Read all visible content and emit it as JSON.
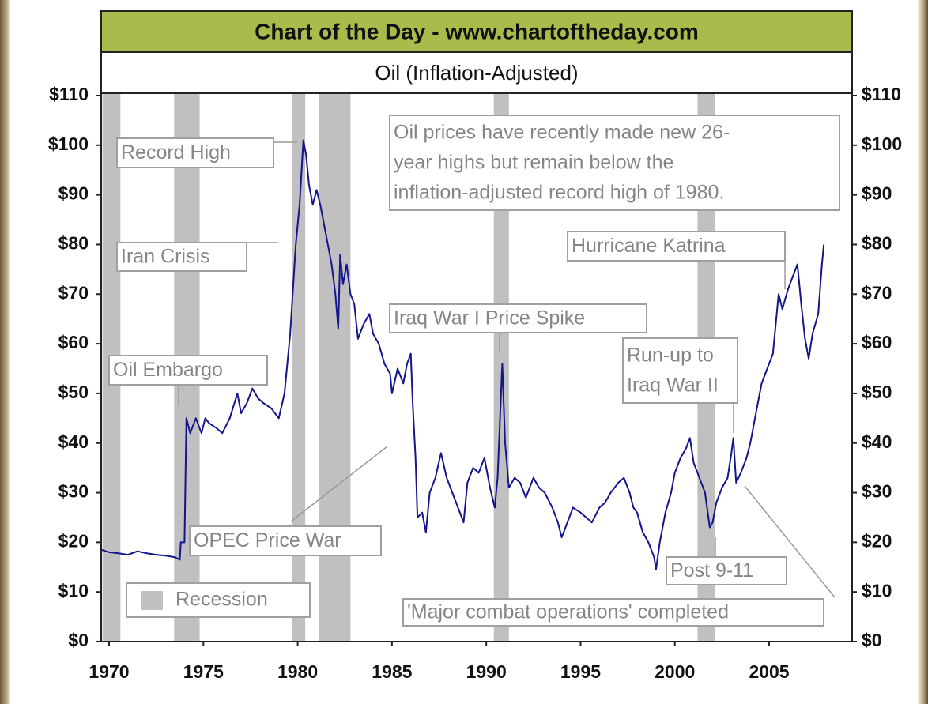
{
  "chart_data": {
    "type": "line",
    "title": "Chart of the Day - www.chartoftheday.com",
    "subtitle": "Oil (Inflation-Adjusted)",
    "color": "#14148c",
    "x": [
      1969.6,
      1970,
      1970.5,
      1971,
      1971.5,
      1972,
      1972.5,
      1973,
      1973.5,
      1973.75,
      1973.8,
      1974,
      1974.1,
      1974.3,
      1974.6,
      1974.9,
      1975.1,
      1975.3,
      1975.7,
      1976,
      1976.4,
      1976.8,
      1977,
      1977.3,
      1977.6,
      1977.9,
      1978.2,
      1978.6,
      1979,
      1979.3,
      1979.6,
      1979.9,
      1980.1,
      1980.3,
      1980.45,
      1980.6,
      1980.8,
      1981,
      1981.2,
      1981.4,
      1981.6,
      1981.8,
      1982,
      1982.15,
      1982.25,
      1982.4,
      1982.6,
      1982.8,
      1983,
      1983.2,
      1983.5,
      1983.8,
      1984,
      1984.3,
      1984.6,
      1984.9,
      1985,
      1985.3,
      1985.6,
      1985.8,
      1986,
      1986.1,
      1986.25,
      1986.35,
      1986.6,
      1986.8,
      1987,
      1987.3,
      1987.6,
      1987.9,
      1988.2,
      1988.5,
      1988.8,
      1989,
      1989.3,
      1989.6,
      1989.9,
      1990.2,
      1990.45,
      1990.6,
      1990.75,
      1990.85,
      1991,
      1991.2,
      1991.5,
      1991.8,
      1992.1,
      1992.5,
      1992.8,
      1993.1,
      1993.5,
      1993.8,
      1994,
      1994.3,
      1994.6,
      1995,
      1995.3,
      1995.6,
      1996,
      1996.3,
      1996.6,
      1997,
      1997.3,
      1997.6,
      1997.8,
      1998,
      1998.3,
      1998.6,
      1998.9,
      1999,
      1999.2,
      1999.5,
      1999.8,
      2000,
      2000.3,
      2000.6,
      2000.8,
      2001,
      2001.3,
      2001.6,
      2001.85,
      2002,
      2002.2,
      2002.5,
      2002.8,
      2003,
      2003.1,
      2003.25,
      2003.5,
      2003.8,
      2004,
      2004.3,
      2004.6,
      2004.9,
      2005.2,
      2005.5,
      2005.7,
      2006,
      2006.3,
      2006.5,
      2006.7,
      2006.9,
      2007.1,
      2007.3,
      2007.6,
      2007.8,
      2007.9
    ],
    "values": [
      18.5,
      18,
      17.8,
      17.5,
      18.2,
      17.8,
      17.5,
      17.3,
      17,
      16.5,
      20,
      20,
      45,
      42,
      45,
      42,
      45,
      44,
      43,
      42,
      45,
      50,
      46,
      48,
      51,
      49,
      48,
      47,
      45,
      50,
      62,
      80,
      88,
      101,
      98,
      92,
      88,
      91,
      88,
      84,
      80,
      76,
      70,
      63,
      78,
      72,
      76,
      70,
      68,
      61,
      64,
      66,
      62,
      60,
      56,
      54,
      50,
      55,
      52,
      56,
      58,
      48,
      37,
      25,
      26,
      22,
      30,
      33,
      38,
      33,
      30,
      27,
      24,
      32,
      35,
      34,
      37,
      31,
      27,
      33,
      47,
      56,
      40,
      31,
      33,
      32,
      29,
      33,
      31,
      30,
      27,
      24,
      21,
      24,
      27,
      26,
      25,
      24,
      27,
      28,
      30,
      32,
      33,
      30,
      27,
      26,
      22,
      20,
      17,
      14.5,
      20,
      26,
      30,
      34,
      37,
      39,
      41,
      36,
      33,
      30,
      23,
      24,
      28,
      31,
      33,
      38,
      41,
      32,
      34,
      37,
      40,
      46,
      52,
      55,
      58,
      70,
      67,
      71,
      74,
      76,
      68,
      61,
      57,
      62,
      66,
      76,
      80
    ],
    "xlim": [
      1969.58,
      2009.4
    ],
    "xticks": [
      1970,
      1975,
      1980,
      1985,
      1990,
      1995,
      2000,
      2005
    ],
    "ylim": [
      0,
      110
    ],
    "yticks": [
      {
        "value": 0,
        "label": "$0"
      },
      {
        "value": 10,
        "label": "$10"
      },
      {
        "value": 20,
        "label": "$20"
      },
      {
        "value": 30,
        "label": "$30"
      },
      {
        "value": 40,
        "label": "$40"
      },
      {
        "value": 50,
        "label": "$50"
      },
      {
        "value": 60,
        "label": "$60"
      },
      {
        "value": 70,
        "label": "$70"
      },
      {
        "value": 80,
        "label": "$80"
      },
      {
        "value": 90,
        "label": "$90"
      },
      {
        "value": 100,
        "label": "$100"
      },
      {
        "value": 110,
        "label": "$110"
      }
    ],
    "y2lim": [
      0,
      110
    ],
    "y2ticks": [
      {
        "value": 0,
        "label": "$0"
      },
      {
        "value": 10,
        "label": "$10"
      },
      {
        "value": 20,
        "label": "$20"
      },
      {
        "value": 30,
        "label": "$30"
      },
      {
        "value": 40,
        "label": "$40"
      },
      {
        "value": 50,
        "label": "$50"
      },
      {
        "value": 60,
        "label": "$60"
      },
      {
        "value": 70,
        "label": "$70"
      },
      {
        "value": 80,
        "label": "$80"
      },
      {
        "value": 90,
        "label": "$90"
      },
      {
        "value": 100,
        "label": "$100"
      },
      {
        "value": 110,
        "label": "$110"
      }
    ],
    "shaded": {
      "name": "Recession",
      "color": "#c0c0c0",
      "periods": [
        [
          1969.65,
          1970.6
        ],
        [
          1973.45,
          1974.8
        ],
        [
          1979.68,
          1980.4
        ],
        [
          1981.15,
          1982.8
        ],
        [
          1990.4,
          1991.2
        ],
        [
          2001.2,
          2002.15
        ]
      ]
    },
    "annotations": [
      {
        "lines": [
          "Record High"
        ]
      },
      {
        "lines": [
          "Iran Crisis"
        ]
      },
      {
        "lines": [
          "Oil Embargo"
        ]
      },
      {
        "lines": [
          "OPEC Price War"
        ]
      },
      {
        "lines": [
          "Iraq War I Price Spike"
        ]
      },
      {
        "lines": [
          "Oil prices have recently made new 26-",
          "year highs but remain below the",
          "inflation-adjusted record high of 1980."
        ]
      },
      {
        "lines": [
          "Hurricane Katrina"
        ]
      },
      {
        "lines": [
          "Run-up to",
          "Iraq War II"
        ]
      },
      {
        "lines": [
          "Post 9-11"
        ]
      },
      {
        "lines": [
          "'Major combat operations' completed"
        ]
      }
    ]
  }
}
